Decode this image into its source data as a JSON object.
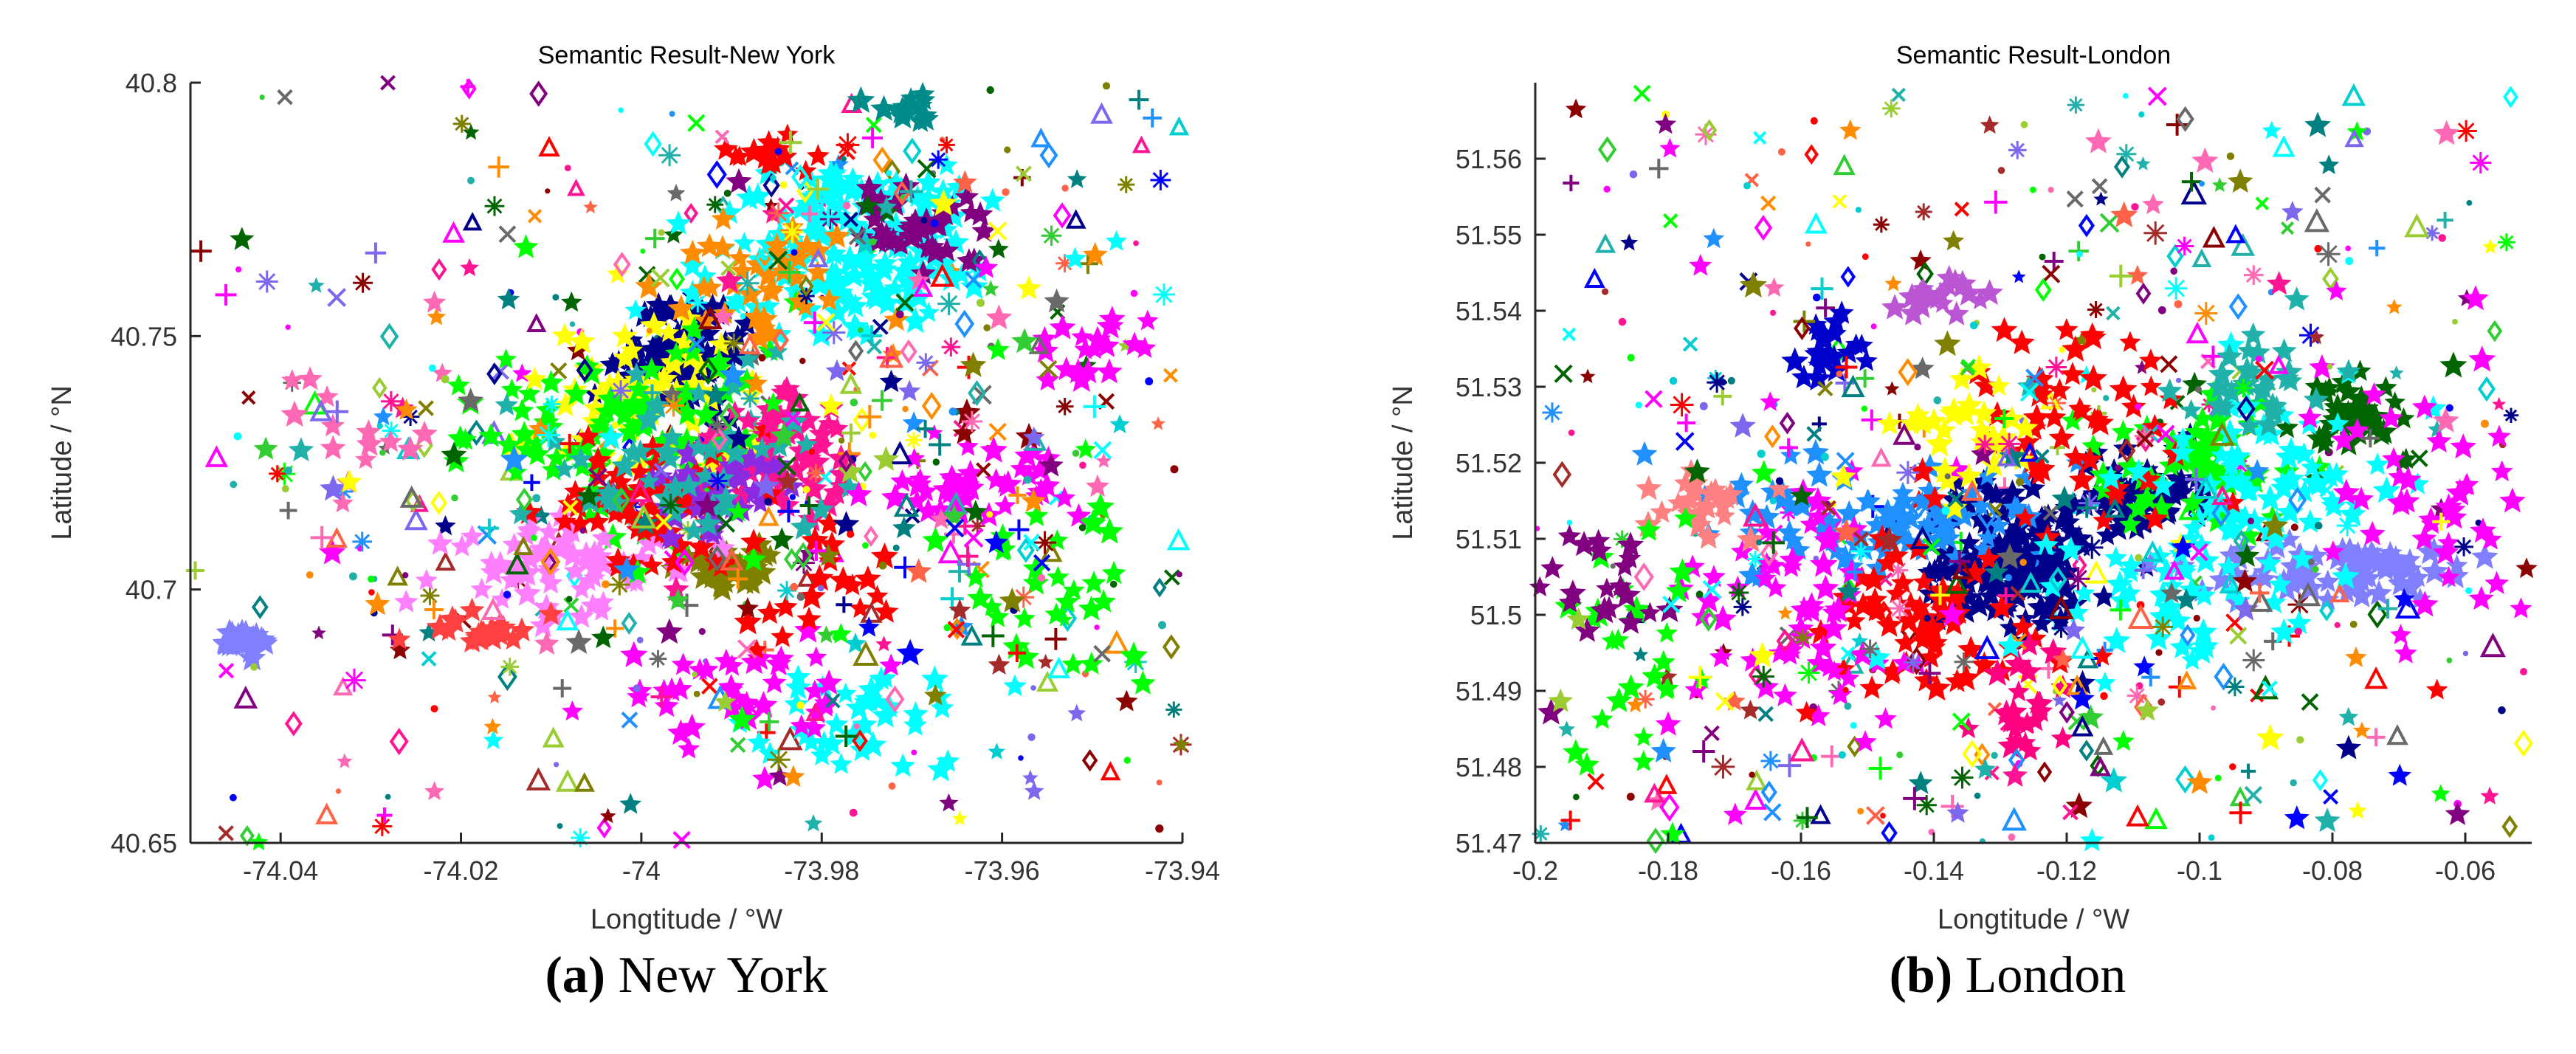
{
  "chart_data": [
    {
      "type": "scatter",
      "title": "Semantic Result-New York",
      "xlabel": "Longtitude / °W",
      "ylabel": "Latitude / °N",
      "xlim": [
        -74.05,
        -73.94
      ],
      "ylim": [
        40.65,
        40.8
      ],
      "xticks": [
        -74.04,
        -74.02,
        -74,
        -73.98,
        -73.96,
        -73.94
      ],
      "yticks": [
        40.65,
        40.7,
        40.75,
        40.8
      ],
      "grid": false,
      "legend": "none",
      "caption_letter": "(a)",
      "caption_text": "New York",
      "clusters": [
        {
          "x": -73.995,
          "y": 40.747,
          "spread_x": 0.004,
          "spread_y": 0.006,
          "color": "#00008b",
          "marker": "star",
          "n": 80
        },
        {
          "x": -73.985,
          "y": 40.728,
          "spread_x": 0.005,
          "spread_y": 0.005,
          "color": "#ff1493",
          "marker": "star",
          "n": 80
        },
        {
          "x": -73.978,
          "y": 40.762,
          "spread_x": 0.008,
          "spread_y": 0.006,
          "color": "#00ffff",
          "marker": "star",
          "n": 100
        },
        {
          "x": -73.975,
          "y": 40.775,
          "spread_x": 0.006,
          "spread_y": 0.004,
          "color": "#00ffff",
          "marker": "star",
          "n": 60
        },
        {
          "x": -73.99,
          "y": 40.704,
          "spread_x": 0.003,
          "spread_y": 0.002,
          "color": "#808000",
          "marker": "star",
          "n": 40
        },
        {
          "x": -74.0,
          "y": 40.738,
          "spread_x": 0.006,
          "spread_y": 0.008,
          "color": "#ffff00",
          "marker": "star",
          "n": 60
        },
        {
          "x": -74.0,
          "y": 40.73,
          "spread_x": 0.008,
          "spread_y": 0.01,
          "color": "#00ff00",
          "marker": "star",
          "n": 90
        },
        {
          "x": -74.01,
          "y": 40.705,
          "spread_x": 0.006,
          "spread_y": 0.006,
          "color": "#ff80ff",
          "marker": "star",
          "n": 70
        },
        {
          "x": -74.0,
          "y": 40.715,
          "spread_x": 0.006,
          "spread_y": 0.006,
          "color": "#ff0000",
          "marker": "star",
          "n": 60
        },
        {
          "x": -73.992,
          "y": 40.72,
          "spread_x": 0.005,
          "spread_y": 0.005,
          "color": "#8a2be2",
          "marker": "star",
          "n": 40
        },
        {
          "x": -73.995,
          "y": 40.725,
          "spread_x": 0.007,
          "spread_y": 0.008,
          "color": "#20b2aa",
          "marker": "star",
          "n": 50
        },
        {
          "x": -73.985,
          "y": 40.76,
          "spread_x": 0.006,
          "spread_y": 0.006,
          "color": "#ff8c00",
          "marker": "star",
          "n": 40
        },
        {
          "x": -73.97,
          "y": 40.77,
          "spread_x": 0.004,
          "spread_y": 0.004,
          "color": "#800080",
          "marker": "star",
          "n": 40
        },
        {
          "x": -73.965,
          "y": 40.72,
          "spread_x": 0.005,
          "spread_y": 0.004,
          "color": "#ff00ff",
          "marker": "star",
          "n": 40
        },
        {
          "x": -73.975,
          "y": 40.675,
          "spread_x": 0.006,
          "spread_y": 0.005,
          "color": "#00ffff",
          "marker": "star",
          "n": 40
        },
        {
          "x": -73.99,
          "y": 40.68,
          "spread_x": 0.008,
          "spread_y": 0.006,
          "color": "#ff00ff",
          "marker": "star",
          "n": 40
        },
        {
          "x": -74.045,
          "y": 40.69,
          "spread_x": 0.002,
          "spread_y": 0.0012,
          "color": "#8080ff",
          "marker": "star",
          "n": 25
        },
        {
          "x": -74.018,
          "y": 40.692,
          "spread_x": 0.003,
          "spread_y": 0.002,
          "color": "#ff4040",
          "marker": "star",
          "n": 20
        },
        {
          "x": -73.97,
          "y": 40.795,
          "spread_x": 0.002,
          "spread_y": 0.0015,
          "color": "#008b8b",
          "marker": "star",
          "n": 15
        },
        {
          "x": -73.985,
          "y": 40.785,
          "spread_x": 0.003,
          "spread_y": 0.002,
          "color": "#ff0000",
          "marker": "star",
          "n": 15
        },
        {
          "x": -74.03,
          "y": 40.73,
          "spread_x": 0.004,
          "spread_y": 0.01,
          "color": "#ff69b4",
          "marker": "star",
          "n": 15
        },
        {
          "x": -73.95,
          "y": 40.745,
          "spread_x": 0.004,
          "spread_y": 0.004,
          "color": "#ff00ff",
          "marker": "star",
          "n": 20
        },
        {
          "x": -73.955,
          "y": 40.7,
          "spread_x": 0.006,
          "spread_y": 0.01,
          "color": "#00ff00",
          "marker": "star",
          "n": 30
        },
        {
          "x": -73.98,
          "y": 40.7,
          "spread_x": 0.006,
          "spread_y": 0.006,
          "color": "#ff0000",
          "marker": "star",
          "n": 20
        },
        {
          "x": -73.995,
          "y": 40.72,
          "spread_x": 0.016,
          "spread_y": 0.025,
          "color": "#ff0000",
          "marker": "mixed",
          "n": 120
        },
        {
          "x": -73.975,
          "y": 40.75,
          "spread_x": 0.012,
          "spread_y": 0.02,
          "color": "#0000ff",
          "marker": "mixed",
          "n": 80
        },
        {
          "x": -73.99,
          "y": 40.69,
          "spread_x": 0.02,
          "spread_y": 0.015,
          "color": "#ff00ff",
          "marker": "mixed",
          "n": 60
        },
        {
          "x": -73.96,
          "y": 40.72,
          "spread_x": 0.01,
          "spread_y": 0.02,
          "color": "#00ff00",
          "marker": "mixed",
          "n": 60
        },
        {
          "x": -74.03,
          "y": 40.72,
          "spread_x": 0.01,
          "spread_y": 0.02,
          "color": "#ff8c00",
          "marker": "mixed",
          "n": 40
        },
        {
          "x": -73.975,
          "y": 40.78,
          "spread_x": 0.01,
          "spread_y": 0.008,
          "color": "#800080",
          "marker": "mixed",
          "n": 40
        }
      ]
    },
    {
      "type": "scatter",
      "title": "Semantic Result-London",
      "xlabel": "Longtitude / °W",
      "ylabel": "Latitude / °N",
      "xlim": [
        -0.2,
        -0.05
      ],
      "ylim": [
        51.47,
        51.57
      ],
      "xticks": [
        -0.2,
        -0.18,
        -0.16,
        -0.14,
        -0.12,
        -0.1,
        -0.08,
        -0.06
      ],
      "yticks": [
        51.47,
        51.48,
        51.49,
        51.5,
        51.51,
        51.52,
        51.53,
        51.54,
        51.55,
        51.56
      ],
      "grid": false,
      "legend": "none",
      "caption_letter": "(b)",
      "caption_text": "London",
      "clusters": [
        {
          "x": -0.128,
          "y": 51.508,
          "spread_x": 0.006,
          "spread_y": 0.005,
          "color": "#00008b",
          "marker": "star",
          "n": 160
        },
        {
          "x": -0.108,
          "y": 51.515,
          "spread_x": 0.005,
          "spread_y": 0.004,
          "color": "#00008b",
          "marker": "star",
          "n": 60
        },
        {
          "x": -0.08,
          "y": 51.506,
          "spread_x": 0.01,
          "spread_y": 0.002,
          "color": "#8080ff",
          "marker": "star",
          "n": 80
        },
        {
          "x": -0.15,
          "y": 51.512,
          "spread_x": 0.012,
          "spread_y": 0.004,
          "color": "#1e90ff",
          "marker": "star",
          "n": 80
        },
        {
          "x": -0.1,
          "y": 51.52,
          "spread_x": 0.008,
          "spread_y": 0.004,
          "color": "#00ff00",
          "marker": "star",
          "n": 60
        },
        {
          "x": -0.078,
          "y": 51.526,
          "spread_x": 0.004,
          "spread_y": 0.003,
          "color": "#006400",
          "marker": "star",
          "n": 40
        },
        {
          "x": -0.14,
          "y": 51.498,
          "spread_x": 0.008,
          "spread_y": 0.006,
          "color": "#ff0000",
          "marker": "star",
          "n": 60
        },
        {
          "x": -0.16,
          "y": 51.5,
          "spread_x": 0.01,
          "spread_y": 0.008,
          "color": "#ff00ff",
          "marker": "star",
          "n": 60
        },
        {
          "x": -0.12,
          "y": 51.525,
          "spread_x": 0.01,
          "spread_y": 0.006,
          "color": "#ff0000",
          "marker": "star",
          "n": 50
        },
        {
          "x": -0.135,
          "y": 51.525,
          "spread_x": 0.006,
          "spread_y": 0.004,
          "color": "#ffff00",
          "marker": "star",
          "n": 30
        },
        {
          "x": -0.09,
          "y": 51.518,
          "spread_x": 0.01,
          "spread_y": 0.006,
          "color": "#00ffff",
          "marker": "star",
          "n": 60
        },
        {
          "x": -0.065,
          "y": 51.515,
          "spread_x": 0.008,
          "spread_y": 0.008,
          "color": "#ff00ff",
          "marker": "star",
          "n": 40
        },
        {
          "x": -0.105,
          "y": 51.505,
          "spread_x": 0.01,
          "spread_y": 0.006,
          "color": "#00ffff",
          "marker": "star",
          "n": 50
        },
        {
          "x": -0.155,
          "y": 51.535,
          "spread_x": 0.003,
          "spread_y": 0.002,
          "color": "#0000cd",
          "marker": "star",
          "n": 20
        },
        {
          "x": -0.14,
          "y": 51.542,
          "spread_x": 0.004,
          "spread_y": 0.0015,
          "color": "#ba55d3",
          "marker": "star",
          "n": 20
        },
        {
          "x": -0.175,
          "y": 51.515,
          "spread_x": 0.004,
          "spread_y": 0.003,
          "color": "#ff8080",
          "marker": "star",
          "n": 25
        },
        {
          "x": -0.125,
          "y": 51.487,
          "spread_x": 0.003,
          "spread_y": 0.003,
          "color": "#ff0080",
          "marker": "star",
          "n": 25
        },
        {
          "x": -0.185,
          "y": 51.497,
          "spread_x": 0.008,
          "spread_y": 0.01,
          "color": "#00ff00",
          "marker": "star",
          "n": 30
        },
        {
          "x": -0.09,
          "y": 51.53,
          "spread_x": 0.006,
          "spread_y": 0.004,
          "color": "#20b2aa",
          "marker": "star",
          "n": 30
        },
        {
          "x": -0.19,
          "y": 51.505,
          "spread_x": 0.004,
          "spread_y": 0.004,
          "color": "#800080",
          "marker": "star",
          "n": 20
        },
        {
          "x": -0.125,
          "y": 51.51,
          "spread_x": 0.04,
          "spread_y": 0.015,
          "color": "#ff0000",
          "marker": "mixed",
          "n": 140
        },
        {
          "x": -0.12,
          "y": 51.53,
          "spread_x": 0.04,
          "spread_y": 0.02,
          "color": "#00ff00",
          "marker": "mixed",
          "n": 90
        },
        {
          "x": -0.12,
          "y": 51.49,
          "spread_x": 0.04,
          "spread_y": 0.012,
          "color": "#ff00ff",
          "marker": "mixed",
          "n": 80
        },
        {
          "x": -0.1,
          "y": 51.55,
          "spread_x": 0.04,
          "spread_y": 0.01,
          "color": "#0000ff",
          "marker": "mixed",
          "n": 60
        },
        {
          "x": -0.13,
          "y": 51.475,
          "spread_x": 0.04,
          "spread_y": 0.006,
          "color": "#00ffff",
          "marker": "mixed",
          "n": 50
        }
      ]
    }
  ]
}
